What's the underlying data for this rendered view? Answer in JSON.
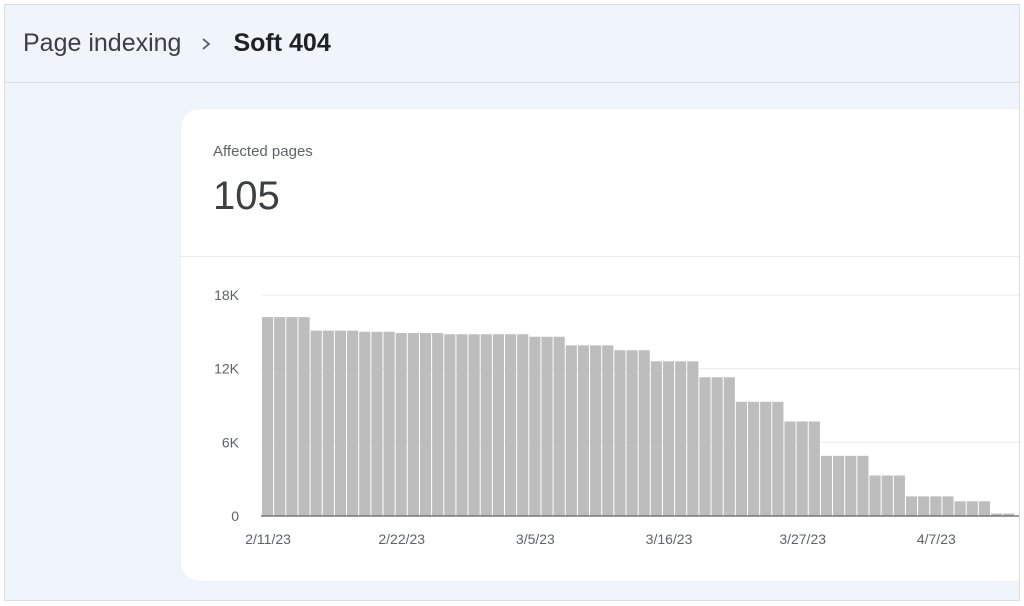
{
  "breadcrumb": {
    "parent": "Page indexing",
    "current": "Soft 404"
  },
  "metric": {
    "label": "Affected pages",
    "value": "105"
  },
  "chart_data": {
    "type": "bar",
    "title": "",
    "xlabel": "",
    "ylabel": "",
    "ylim": [
      0,
      18000
    ],
    "y_ticks": [
      "18K",
      "12K",
      "6K",
      "0"
    ],
    "y_tick_values": [
      18000,
      12000,
      6000,
      0
    ],
    "x_tick_labels": [
      "2/11/23",
      "2/22/23",
      "3/5/23",
      "3/16/23",
      "3/27/23",
      "4/7/23"
    ],
    "x_tick_indices": [
      0,
      11,
      22,
      33,
      44,
      55
    ],
    "bar_color": "#bdbdbd",
    "values": [
      16200,
      16200,
      16200,
      16200,
      15100,
      15100,
      15100,
      15100,
      15000,
      15000,
      15000,
      14900,
      14900,
      14900,
      14900,
      14800,
      14800,
      14800,
      14800,
      14800,
      14800,
      14800,
      14600,
      14600,
      14600,
      13900,
      13900,
      13900,
      13900,
      13500,
      13500,
      13500,
      12600,
      12600,
      12600,
      12600,
      11300,
      11300,
      11300,
      9300,
      9300,
      9300,
      9300,
      7700,
      7700,
      7700,
      4900,
      4900,
      4900,
      4900,
      3300,
      3300,
      3300,
      1600,
      1600,
      1600,
      1600,
      1200,
      1200,
      1200,
      200,
      200
    ]
  }
}
